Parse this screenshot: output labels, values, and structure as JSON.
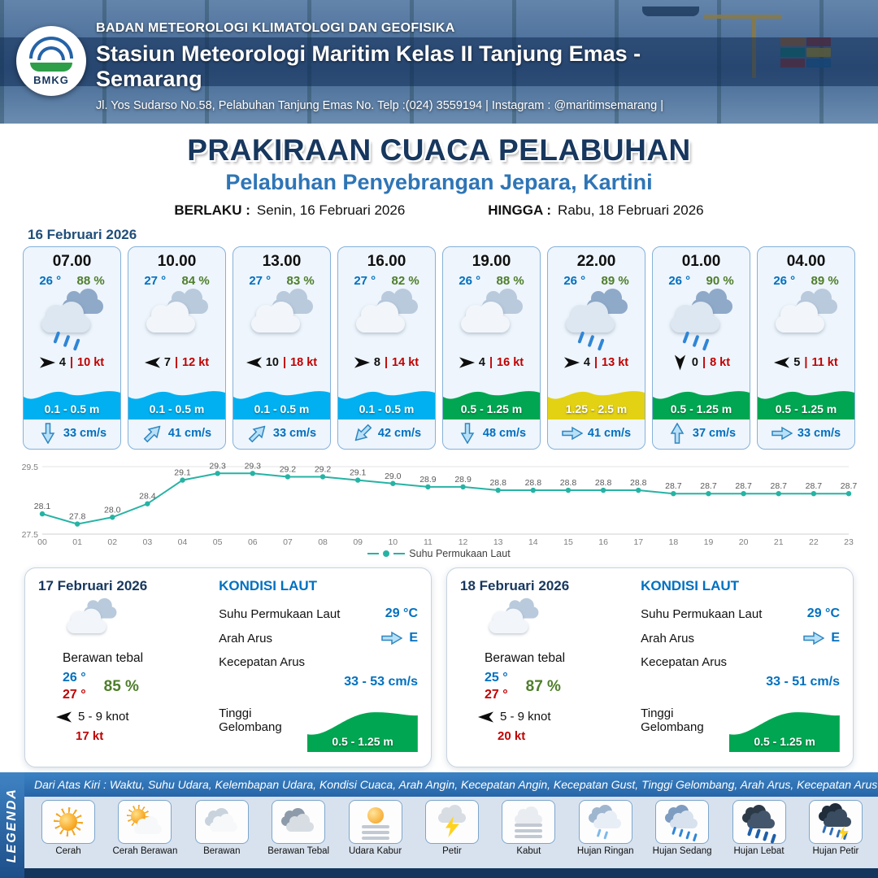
{
  "colors": {
    "navy": "#17375e",
    "subtitle_blue": "#2e75b6",
    "temp_blue": "#0070c0",
    "humidity_green": "#4e7e2a",
    "gust_red": "#c00000",
    "wave_cyan": "#00b0f0",
    "wave_green": "#00a651",
    "wave_yellow": "#e3d114",
    "chart_teal": "#26b3a4"
  },
  "header": {
    "logo": "BMKG",
    "org": "BADAN METEOROLOGI KLIMATOLOGI DAN GEOFISIKA",
    "station": "Stasiun Meteorologi Maritim Kelas II Tanjung Emas - Semarang",
    "address": "Jl. Yos Sudarso No.58, Pelabuhan Tanjung Emas No. Telp :(024) 3559194 | Instagram : @maritimsemarang |"
  },
  "title": {
    "main": "PRAKIRAAN CUACA PELABUHAN",
    "sub": "Pelabuhan Penyebrangan Jepara, Kartini",
    "valid_from_label": "BERLAKU :",
    "valid_from": "Senin, 16 Februari 2026",
    "valid_to_label": "HINGGA :",
    "valid_to": "Rabu, 18 Februari 2026"
  },
  "forecast_date": "16 Februari 2026",
  "cards": [
    {
      "time": "07.00",
      "temp": "26 °",
      "rh": "88 %",
      "icon": "rain",
      "wind_dir": "e",
      "wind_speed": "4",
      "wind_gust": "10 kt",
      "wave": "0.1 - 0.5 m",
      "wave_color": "cyan",
      "current_dir": "s",
      "current": "33 cm/s"
    },
    {
      "time": "10.00",
      "temp": "27 °",
      "rh": "84 %",
      "icon": "cloud",
      "wind_dir": "w",
      "wind_speed": "7",
      "wind_gust": "12 kt",
      "wave": "0.1 - 0.5 m",
      "wave_color": "cyan",
      "current_dir": "ne",
      "current": "41 cm/s"
    },
    {
      "time": "13.00",
      "temp": "27 °",
      "rh": "83 %",
      "icon": "cloud",
      "wind_dir": "w",
      "wind_speed": "10",
      "wind_gust": "18 kt",
      "wave": "0.1 - 0.5 m",
      "wave_color": "cyan",
      "current_dir": "ne",
      "current": "33 cm/s"
    },
    {
      "time": "16.00",
      "temp": "27 °",
      "rh": "82 %",
      "icon": "cloud",
      "wind_dir": "e",
      "wind_speed": "8",
      "wind_gust": "14 kt",
      "wave": "0.1 - 0.5 m",
      "wave_color": "cyan",
      "current_dir": "sw",
      "current": "42 cm/s"
    },
    {
      "time": "19.00",
      "temp": "26 °",
      "rh": "88 %",
      "icon": "cloud",
      "wind_dir": "e",
      "wind_speed": "4",
      "wind_gust": "16 kt",
      "wave": "0.5 - 1.25 m",
      "wave_color": "green",
      "current_dir": "s",
      "current": "48 cm/s"
    },
    {
      "time": "22.00",
      "temp": "26 °",
      "rh": "89 %",
      "icon": "rain",
      "wind_dir": "e",
      "wind_speed": "4",
      "wind_gust": "13 kt",
      "wave": "1.25 - 2.5 m",
      "wave_color": "yellow",
      "current_dir": "e",
      "current": "41 cm/s"
    },
    {
      "time": "01.00",
      "temp": "26 °",
      "rh": "90 %",
      "icon": "rain",
      "wind_dir": "s",
      "wind_speed": "0",
      "wind_gust": "8 kt",
      "wave": "0.5 - 1.25 m",
      "wave_color": "green",
      "current_dir": "n",
      "current": "37 cm/s"
    },
    {
      "time": "04.00",
      "temp": "26 °",
      "rh": "89 %",
      "icon": "cloud",
      "wind_dir": "w",
      "wind_speed": "5",
      "wind_gust": "11 kt",
      "wave": "0.5 - 1.25 m",
      "wave_color": "green",
      "current_dir": "e",
      "current": "33 cm/s"
    }
  ],
  "chart_data": {
    "type": "line",
    "series": "Suhu Permukaan Laut",
    "x": [
      "00",
      "01",
      "02",
      "03",
      "04",
      "05",
      "06",
      "07",
      "08",
      "09",
      "10",
      "11",
      "12",
      "13",
      "14",
      "15",
      "16",
      "17",
      "18",
      "19",
      "20",
      "21",
      "22",
      "23"
    ],
    "values": [
      28.1,
      27.8,
      28.0,
      28.4,
      29.1,
      29.3,
      29.3,
      29.2,
      29.2,
      29.1,
      29.0,
      28.9,
      28.9,
      28.8,
      28.8,
      28.8,
      28.8,
      28.8,
      28.7,
      28.7,
      28.7,
      28.7,
      28.7,
      28.7
    ],
    "ylim": [
      27.5,
      29.5
    ],
    "line_color": "#26b3a4",
    "grid": true,
    "legend_position": "bottom"
  },
  "sea_labels": {
    "title": "KONDISI LAUT",
    "sst": "Suhu Permukaan Laut",
    "current_dir": "Arah Arus",
    "current_speed": "Kecepatan Arus",
    "wave": "Tinggi Gelombang"
  },
  "days": [
    {
      "date": "17 Februari 2026",
      "icon": "cloud",
      "condition": "Berawan tebal",
      "temp_min": "26 °",
      "temp_max": "27 °",
      "rh": "85 %",
      "wind_dir": "w",
      "wind": "5 - 9 knot",
      "gust": "17 kt",
      "sst": "29 °C",
      "current_dir": "e",
      "current_dir_label": "E",
      "current_speed": "33 - 53 cm/s",
      "wave": "0.5 - 1.25 m"
    },
    {
      "date": "18 Februari 2026",
      "icon": "cloud",
      "condition": "Berawan tebal",
      "temp_min": "25 °",
      "temp_max": "27 °",
      "rh": "87 %",
      "wind_dir": "w",
      "wind": "5 - 9 knot",
      "gust": "20 kt",
      "sst": "29 °C",
      "current_dir": "e",
      "current_dir_label": "E",
      "current_speed": "33 - 51 cm/s",
      "wave": "0.5 - 1.25 m"
    }
  ],
  "legend": {
    "title": "LEGENDA",
    "note": "Dari Atas Kiri : Waktu, Suhu Udara, Kelembapan Udara, Kondisi Cuaca, Arah Angin, Kecepatan Angin, Kecepatan Gust, Tinggi Gelombang, Arah Arus, Kecepatan Arus",
    "items": [
      {
        "label": "Cerah",
        "icon": "sun"
      },
      {
        "label": "Cerah Berawan",
        "icon": "sun-cloud"
      },
      {
        "label": "Berawan",
        "icon": "cloud"
      },
      {
        "label": "Berawan Tebal",
        "icon": "cloud-thick"
      },
      {
        "label": "Udara Kabur",
        "icon": "haze"
      },
      {
        "label": "Petir",
        "icon": "bolt"
      },
      {
        "label": "Kabut",
        "icon": "fog"
      },
      {
        "label": "Hujan Ringan",
        "icon": "rain-light"
      },
      {
        "label": "Hujan Sedang",
        "icon": "rain-med"
      },
      {
        "label": "Hujan Lebat",
        "icon": "rain-heavy"
      },
      {
        "label": "Hujan Petir",
        "icon": "storm"
      }
    ]
  }
}
